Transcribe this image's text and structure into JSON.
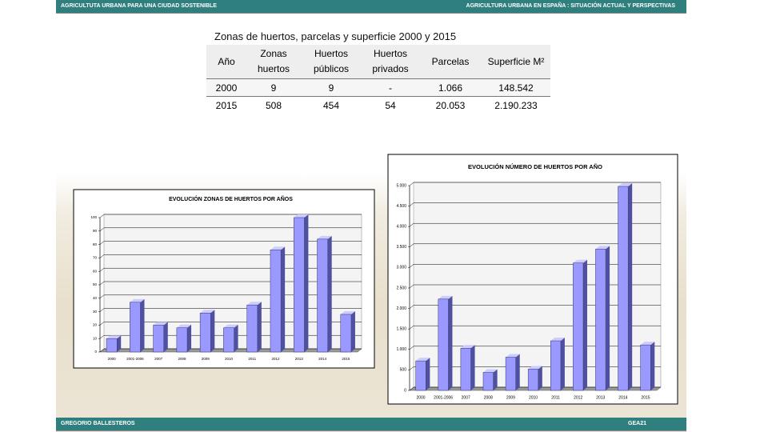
{
  "header": {
    "left": "AGRICULTUTA URBANA PARA UNA CIUDAD SOSTENIBLE",
    "right": "AGRICULTURA URBANA EN ESPAÑA : SITUACIÓN ACTUAL Y PERSPECTIVAS"
  },
  "footer": {
    "left": "GREGORIO BALLESTEROS",
    "right": "GEA21"
  },
  "table": {
    "title": "Zonas de huertos, parcelas y superficie 2000 y 2015",
    "columns": [
      "Año",
      "Zonas huertos",
      "Huertos públicos",
      "Huertos privados",
      "Parcelas",
      "Superficie M²"
    ],
    "rows": [
      [
        "2000",
        "9",
        "9",
        "-",
        "1.066",
        "148.542"
      ],
      [
        "2015",
        "508",
        "454",
        "54",
        "20.053",
        "2.190.233"
      ]
    ]
  },
  "chart_data": [
    {
      "type": "bar",
      "title": "EVOLUCIÓN ZONAS DE HUERTOS POR AÑOS",
      "categories": [
        "2000",
        "2001-2006",
        "2007",
        "2008",
        "2009",
        "2010",
        "2011",
        "2012",
        "2013",
        "2014",
        "2015"
      ],
      "values": [
        10,
        37,
        20,
        18,
        29,
        18,
        35,
        76,
        100,
        84,
        28
      ],
      "color": "#9999ff",
      "ylim": [
        0,
        100
      ],
      "yticks": [
        0,
        10,
        20,
        30,
        40,
        50,
        60,
        70,
        80,
        90,
        100
      ],
      "grid": true
    },
    {
      "type": "bar",
      "title": "EVOLUCIÓN NÚMERO DE HUERTOS POR AÑO",
      "categories": [
        "2000",
        "2001-2006",
        "2007",
        "2008",
        "2009",
        "2010",
        "2011",
        "2012",
        "2013",
        "2014",
        "2015"
      ],
      "values": [
        720,
        2230,
        1030,
        440,
        810,
        520,
        1210,
        3110,
        3450,
        4980,
        1110
      ],
      "color": "#9999ff",
      "ylim": [
        0,
        5000
      ],
      "yticks": [
        0,
        {
          "value": 500,
          "label": "500"
        },
        {
          "value": 1000,
          "label": "1.000"
        },
        {
          "value": 1500,
          "label": "1.500"
        },
        {
          "value": 2000,
          "label": "2.000"
        },
        {
          "value": 2500,
          "label": "2.500"
        },
        {
          "value": 3000,
          "label": "3.000"
        },
        {
          "value": 3500,
          "label": "3.500"
        },
        {
          "value": 4000,
          "label": "4.000"
        },
        {
          "value": 4500,
          "label": "4.500"
        },
        {
          "value": 5000,
          "label": "5.000"
        }
      ],
      "grid": true
    }
  ]
}
